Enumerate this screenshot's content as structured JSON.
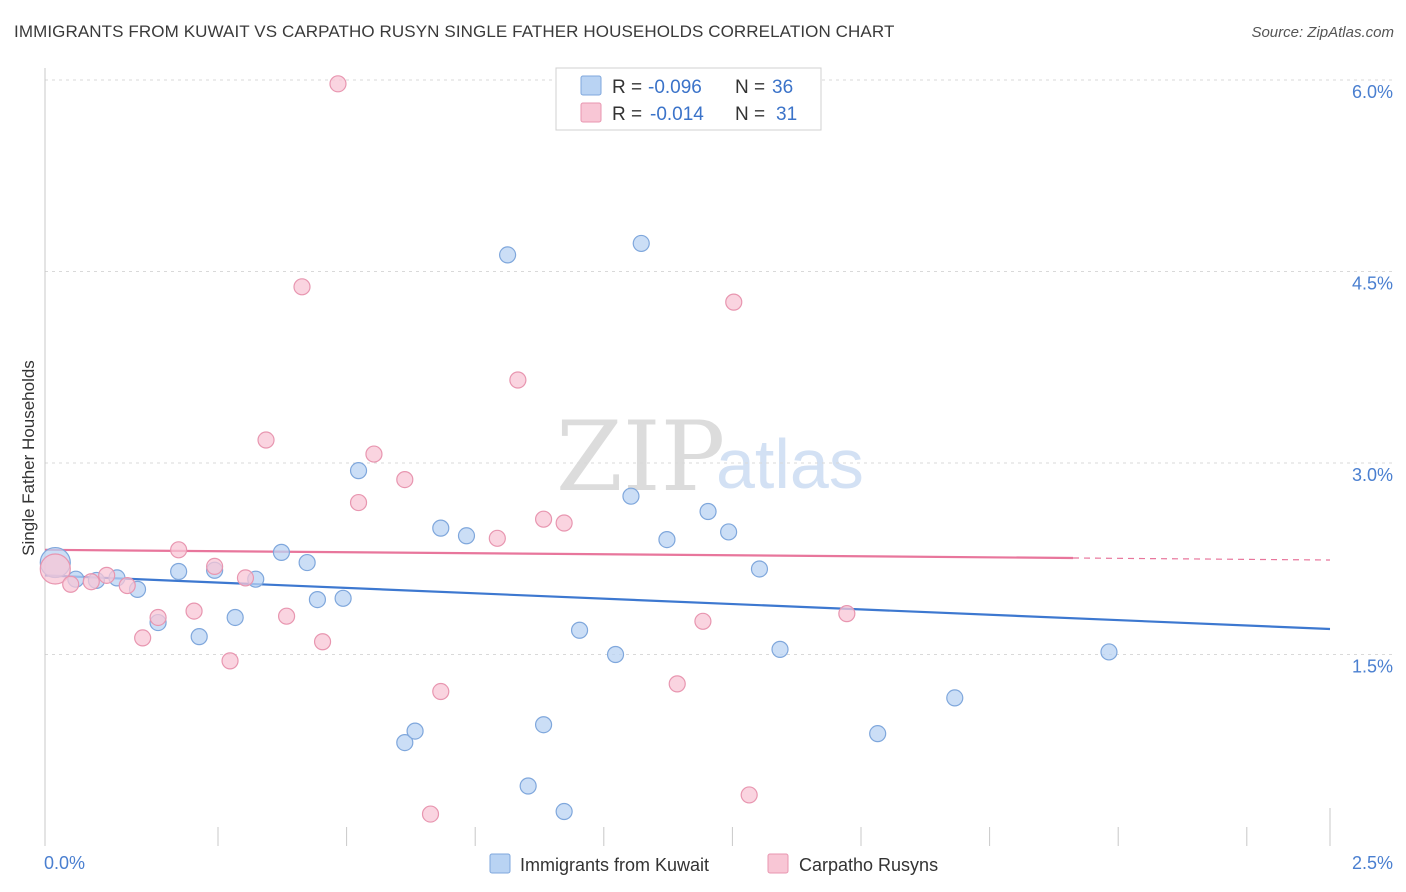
{
  "title": "IMMIGRANTS FROM KUWAIT VS CARPATHO RUSYN SINGLE FATHER HOUSEHOLDS CORRELATION CHART",
  "source": "Source: ZipAtlas.com",
  "watermark": {
    "zip": "ZIP",
    "atlas": "atlas"
  },
  "colors": {
    "blue_fill": "#b9d3f3",
    "blue_stroke": "#7fa7dc",
    "blue_line": "#3d78d0",
    "pink_fill": "#f8c6d5",
    "pink_stroke": "#e896b0",
    "pink_line": "#e8769c",
    "value_text": "#3b73c9",
    "grid": "#d9d9d9"
  },
  "legend": {
    "r_label": "R =",
    "n_label": "N =",
    "series": [
      {
        "r": "-0.096",
        "n": "36"
      },
      {
        "r": "-0.014",
        "n": "31"
      }
    ]
  },
  "chart_data": {
    "type": "scatter",
    "title": "IMMIGRANTS FROM KUWAIT VS CARPATHO RUSYN SINGLE FATHER HOUSEHOLDS CORRELATION CHART",
    "xlabel": "",
    "ylabel": "Single Father Households",
    "xlim": [
      0,
      2.5
    ],
    "ylim": [
      0,
      6.2
    ],
    "x_tick_labels": [
      "0.0%",
      "2.5%"
    ],
    "y_ticks": [
      1.5,
      3.0,
      4.5,
      6.0
    ],
    "y_tick_labels": [
      "1.5%",
      "3.0%",
      "4.5%",
      "6.0%"
    ],
    "series": [
      {
        "name": "Immigrants from Kuwait",
        "r": -0.096,
        "n": 36,
        "trend": {
          "x0": 0.0,
          "y0": 2.12,
          "x1": 2.5,
          "y1": 1.7
        },
        "points": [
          {
            "x": 0.02,
            "y": 2.22,
            "big": true
          },
          {
            "x": 0.06,
            "y": 2.09
          },
          {
            "x": 0.1,
            "y": 2.08
          },
          {
            "x": 0.14,
            "y": 2.1
          },
          {
            "x": 0.18,
            "y": 2.01
          },
          {
            "x": 0.22,
            "y": 1.75
          },
          {
            "x": 0.26,
            "y": 2.15
          },
          {
            "x": 0.3,
            "y": 1.64
          },
          {
            "x": 0.33,
            "y": 2.16
          },
          {
            "x": 0.37,
            "y": 1.79
          },
          {
            "x": 0.41,
            "y": 2.09
          },
          {
            "x": 0.46,
            "y": 2.3
          },
          {
            "x": 0.51,
            "y": 2.22
          },
          {
            "x": 0.53,
            "y": 1.93
          },
          {
            "x": 0.58,
            "y": 1.94
          },
          {
            "x": 0.61,
            "y": 2.94
          },
          {
            "x": 0.7,
            "y": 0.81
          },
          {
            "x": 0.72,
            "y": 0.9
          },
          {
            "x": 0.77,
            "y": 2.49
          },
          {
            "x": 0.82,
            "y": 2.43
          },
          {
            "x": 0.9,
            "y": 4.63
          },
          {
            "x": 0.94,
            "y": 0.47
          },
          {
            "x": 0.97,
            "y": 0.95
          },
          {
            "x": 1.01,
            "y": 0.27
          },
          {
            "x": 1.04,
            "y": 1.69
          },
          {
            "x": 1.11,
            "y": 1.5
          },
          {
            "x": 1.14,
            "y": 2.74
          },
          {
            "x": 1.16,
            "y": 4.72
          },
          {
            "x": 1.21,
            "y": 2.4
          },
          {
            "x": 1.29,
            "y": 2.62
          },
          {
            "x": 1.33,
            "y": 2.46
          },
          {
            "x": 1.39,
            "y": 2.17
          },
          {
            "x": 1.43,
            "y": 1.54
          },
          {
            "x": 1.62,
            "y": 0.88
          },
          {
            "x": 1.77,
            "y": 1.16
          },
          {
            "x": 2.07,
            "y": 1.52
          }
        ]
      },
      {
        "name": "Carpatho Rusyns",
        "r": -0.014,
        "n": 31,
        "trend": {
          "x0": 0.0,
          "y0": 2.32,
          "x1": 2.5,
          "y1": 2.24
        },
        "points": [
          {
            "x": 0.02,
            "y": 2.17,
            "big": true
          },
          {
            "x": 0.05,
            "y": 2.05
          },
          {
            "x": 0.09,
            "y": 2.07
          },
          {
            "x": 0.12,
            "y": 2.12
          },
          {
            "x": 0.16,
            "y": 2.04
          },
          {
            "x": 0.19,
            "y": 1.63
          },
          {
            "x": 0.22,
            "y": 1.79
          },
          {
            "x": 0.26,
            "y": 2.32
          },
          {
            "x": 0.29,
            "y": 1.84
          },
          {
            "x": 0.33,
            "y": 2.19
          },
          {
            "x": 0.36,
            "y": 1.45
          },
          {
            "x": 0.39,
            "y": 2.1
          },
          {
            "x": 0.43,
            "y": 3.18
          },
          {
            "x": 0.47,
            "y": 1.8
          },
          {
            "x": 0.5,
            "y": 4.38
          },
          {
            "x": 0.54,
            "y": 1.6
          },
          {
            "x": 0.57,
            "y": 5.97
          },
          {
            "x": 0.61,
            "y": 2.69
          },
          {
            "x": 0.64,
            "y": 3.07
          },
          {
            "x": 0.7,
            "y": 2.87
          },
          {
            "x": 0.75,
            "y": 0.25
          },
          {
            "x": 0.77,
            "y": 1.21
          },
          {
            "x": 0.88,
            "y": 2.41
          },
          {
            "x": 0.92,
            "y": 3.65
          },
          {
            "x": 0.97,
            "y": 2.56
          },
          {
            "x": 1.01,
            "y": 2.53
          },
          {
            "x": 1.23,
            "y": 1.27
          },
          {
            "x": 1.28,
            "y": 1.76
          },
          {
            "x": 1.34,
            "y": 4.26
          },
          {
            "x": 1.37,
            "y": 0.4
          },
          {
            "x": 1.56,
            "y": 1.82
          }
        ]
      }
    ],
    "legend_position": "top-center",
    "grid": true
  }
}
